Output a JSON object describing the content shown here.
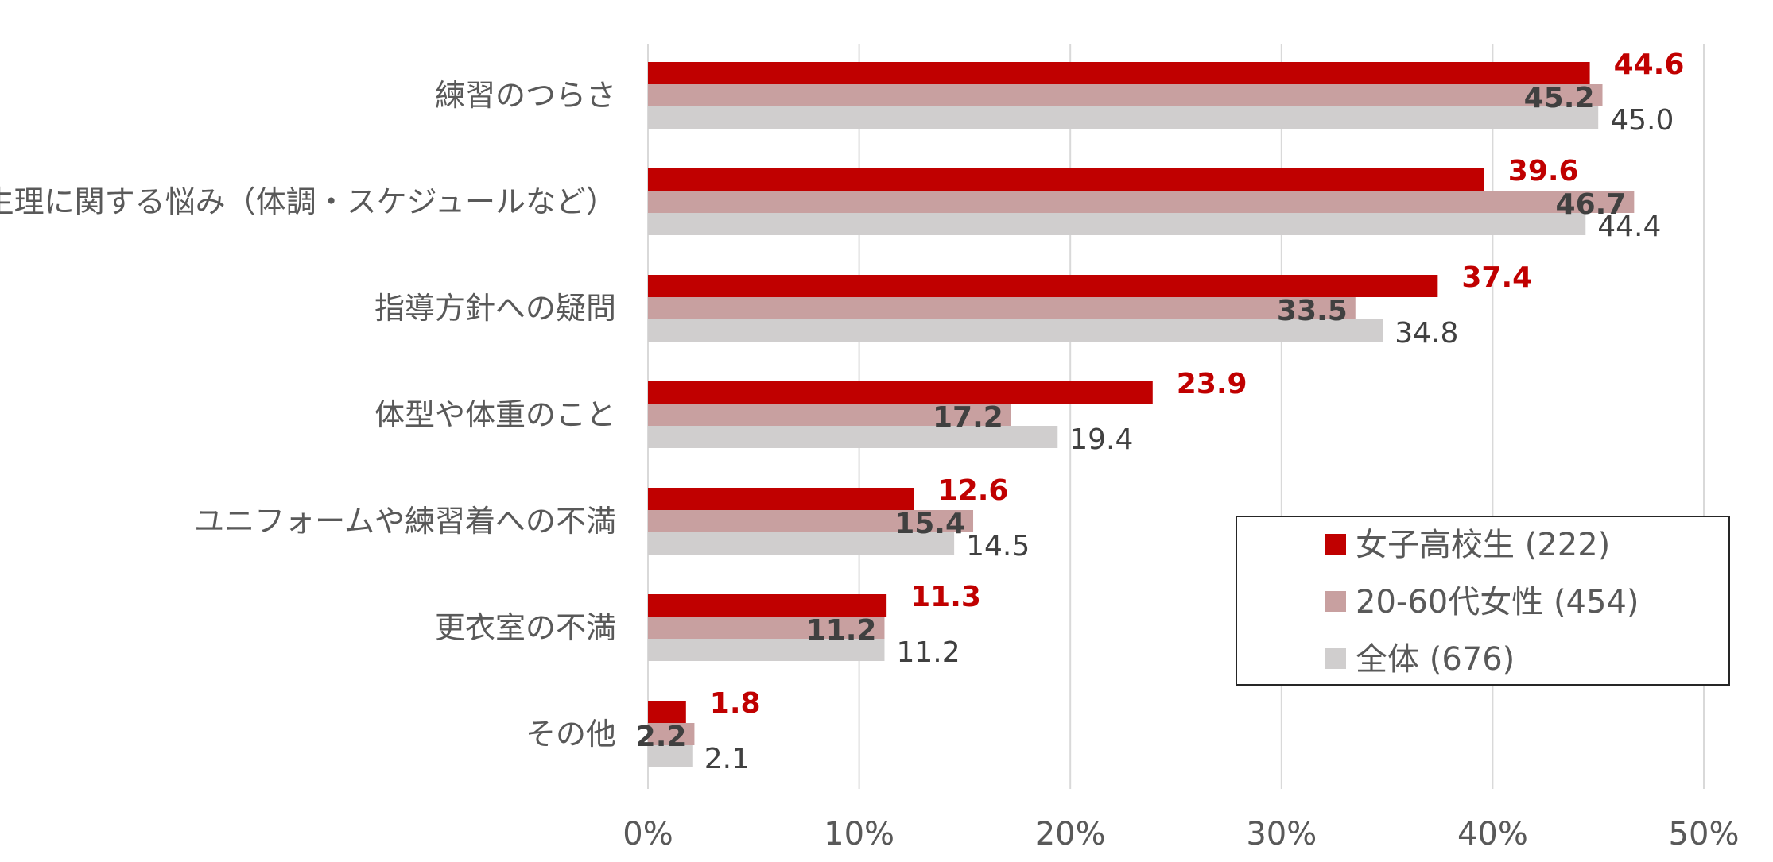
{
  "chart_data": {
    "type": "bar",
    "orientation": "horizontal",
    "categories": [
      "練習のつらさ",
      "生理に関する悩み（体調・スケジュールなど）",
      "指導方針への疑問",
      "体型や体重のこと",
      "ユニフォームや練習着への不満",
      "更衣室の不満",
      "その他"
    ],
    "series": [
      {
        "name": "女子高校生 (222)",
        "color": "#c00000",
        "label_color": "#c00000",
        "label_bold": true,
        "values": [
          44.6,
          39.6,
          37.4,
          23.9,
          12.6,
          11.3,
          1.8
        ]
      },
      {
        "name": "20-60代女性 (454)",
        "color": "#c8a0a0",
        "label_color": "#404040",
        "label_bold": true,
        "values": [
          45.2,
          46.7,
          33.5,
          17.2,
          15.4,
          11.2,
          2.2
        ]
      },
      {
        "name": "全体 (676)",
        "color": "#d0cece",
        "label_color": "#404040",
        "label_bold": false,
        "values": [
          45.0,
          44.4,
          34.8,
          19.4,
          14.5,
          11.2,
          2.1
        ]
      }
    ],
    "x_ticks": [
      "0%",
      "10%",
      "20%",
      "30%",
      "40%",
      "50%"
    ],
    "xlim": [
      0,
      50
    ],
    "grid": true,
    "legend_position": "lower-right",
    "title": "",
    "xlabel": "",
    "ylabel": ""
  }
}
